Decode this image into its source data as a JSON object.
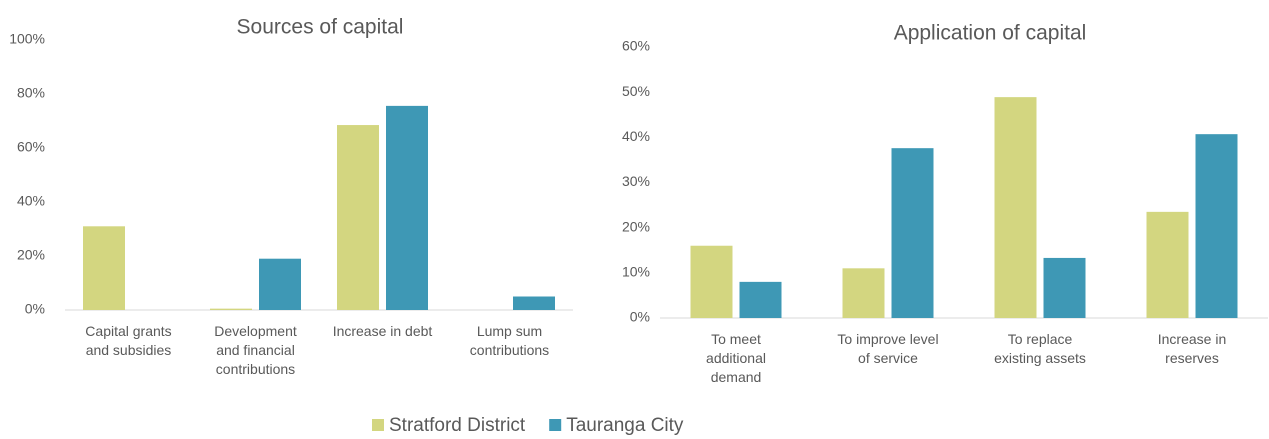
{
  "chart_data": [
    {
      "type": "bar",
      "title": "Sources of capital",
      "categories": [
        "Capital grants\nand subsidies",
        "Development\nand financial\ncontributions",
        "Increase in debt",
        "Lump sum\ncontributions"
      ],
      "series": [
        {
          "name": "Stratford District",
          "color": "#d3d680",
          "values": [
            31,
            0.5,
            68.5,
            0
          ]
        },
        {
          "name": "Tauranga City",
          "color": "#3e98b5",
          "values": [
            0,
            19,
            75.6,
            5
          ]
        }
      ],
      "ylim": [
        0,
        100
      ],
      "yticks": [
        {
          "value": 0,
          "label": "0%"
        },
        {
          "value": 20,
          "label": "20%"
        },
        {
          "value": 40,
          "label": "40%"
        },
        {
          "value": 60,
          "label": "60%"
        },
        {
          "value": 80,
          "label": "80%"
        },
        {
          "value": 100,
          "label": "100%"
        }
      ]
    },
    {
      "type": "bar",
      "title": "Application of capital",
      "categories": [
        "To meet\nadditional\ndemand",
        "To improve level\nof service",
        "To replace\nexisting assets",
        "Increase in\nreserves"
      ],
      "series": [
        {
          "name": "Stratford District",
          "color": "#d3d680",
          "values": [
            16,
            11,
            48.9,
            23.5
          ]
        },
        {
          "name": "Tauranga City",
          "color": "#3e98b5",
          "values": [
            8,
            37.6,
            13.3,
            40.7
          ]
        }
      ],
      "ylim": [
        0,
        60
      ],
      "yticks": [
        {
          "value": 0,
          "label": "0%"
        },
        {
          "value": 10,
          "label": "10%"
        },
        {
          "value": 20,
          "label": "20%"
        },
        {
          "value": 30,
          "label": "30%"
        },
        {
          "value": 40,
          "label": "40%"
        },
        {
          "value": 50,
          "label": "50%"
        },
        {
          "value": 60,
          "label": "60%"
        }
      ]
    }
  ]
}
